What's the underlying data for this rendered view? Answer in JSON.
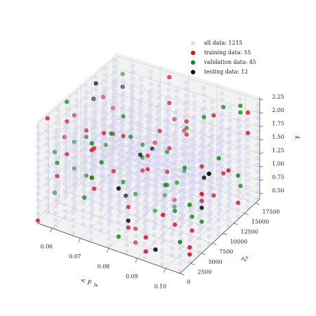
{
  "chart_data": {
    "type": "scatter3d",
    "xlabel": "< F >",
    "ylabel": "T₀",
    "zlabel": "γ",
    "xlim": [
      0.055,
      0.105
    ],
    "ylim": [
      0,
      18500
    ],
    "zlim": [
      0.4,
      2.3
    ],
    "xticks": [
      0.06,
      0.07,
      0.08,
      0.09,
      {
        "value": 0.1,
        "label": "0.10"
      }
    ],
    "yticks": [
      0,
      2500,
      5000,
      7500,
      10000,
      12500,
      15000,
      17500
    ],
    "zticks": [
      {
        "value": 0.5,
        "label": "0.50"
      },
      0.75,
      {
        "value": 1,
        "label": "1.00"
      },
      1.25,
      {
        "value": 1.5,
        "label": "1.50"
      },
      1.75,
      {
        "value": 2,
        "label": "2.00"
      },
      2.25
    ],
    "grid": true,
    "legend": "upper right",
    "series": [
      {
        "name": "all data: 1215",
        "color": "#c4c4f4",
        "grid": {
          "x": [
            0.055,
            0.06125,
            0.0675,
            0.07375,
            0.08,
            0.08625,
            0.0925,
            0.09875,
            0.105
          ],
          "y": [
            0,
            2250,
            4500,
            6750,
            9000,
            11250,
            13500,
            15750,
            18000
          ],
          "z": [
            0.45,
            0.575,
            0.7,
            0.825,
            0.95,
            1.075,
            1.2,
            1.325,
            1.45,
            1.575,
            1.7,
            1.825,
            1.95,
            2.075,
            2.2
          ]
        }
      },
      {
        "name": "training data: 55",
        "color": "#d8102a",
        "x": [
          0.055,
          0.061,
          0.068,
          0.074,
          0.08,
          0.086,
          0.093,
          0.099,
          0.105,
          0.068,
          0.093,
          0.061,
          0.086,
          0.074,
          0.099,
          0.055,
          0.08,
          0.105,
          0.105,
          0.099,
          0.093,
          0.086,
          0.08,
          0.074,
          0.068,
          0.061,
          0.055,
          0.105,
          0.08,
          0.055,
          0.099,
          0.074,
          0.086,
          0.061,
          0.093,
          0.068,
          0.055,
          0.061,
          0.068,
          0.074,
          0.08,
          0.086,
          0.093,
          0.099,
          0.105,
          0.068,
          0.093,
          0.061,
          0.086,
          0.074,
          0.099,
          0.055,
          0.08,
          0.105,
          0.08
        ],
        "y": [
          0,
          13500,
          4500,
          18000,
          9000,
          2250,
          15750,
          6750,
          11250,
          6750,
          0,
          11250,
          2250,
          15750,
          9000,
          4500,
          18000,
          13500,
          15750,
          9000,
          0,
          13500,
          4500,
          18000,
          11250,
          2250,
          6750,
          2250,
          18000,
          6750,
          9000,
          0,
          11250,
          13500,
          15750,
          4500,
          11250,
          4500,
          15750,
          0,
          13500,
          6750,
          18000,
          9000,
          2250,
          9000,
          6750,
          13500,
          11250,
          18000,
          0,
          2250,
          4500,
          15750,
          9000
        ],
        "z": [
          0.45,
          1.7,
          0.95,
          2.2,
          1.2,
          0.7,
          1.95,
          0.575,
          1.45,
          1.825,
          0.825,
          2.075,
          0.45,
          1.325,
          1.575,
          0.95,
          1.2,
          0.7,
          2.2,
          1.075,
          0.575,
          1.7,
          0.45,
          0.825,
          1.45,
          1.95,
          1.2,
          0.7,
          1.45,
          1.825,
          0.95,
          2.075,
          0.575,
          1.2,
          0.45,
          1.7,
          1.325,
          2.2,
          0.45,
          1.575,
          0.825,
          1.95,
          0.7,
          1.075,
          0.575,
          0.95,
          0.575,
          1.2,
          2.075,
          1.7,
          1.325,
          2.2,
          0.825,
          1.825,
          1.45
        ]
      },
      {
        "name": "validation data: 45",
        "color": "#138a13",
        "x": [
          0.068,
          0.093,
          0.061,
          0.086,
          0.074,
          0.099,
          0.055,
          0.08,
          0.105,
          0.055,
          0.061,
          0.068,
          0.074,
          0.08,
          0.086,
          0.093,
          0.099,
          0.105,
          0.105,
          0.08,
          0.055,
          0.099,
          0.074,
          0.086,
          0.061,
          0.093,
          0.068,
          0.105,
          0.099,
          0.093,
          0.086,
          0.08,
          0.074,
          0.068,
          0.061,
          0.055,
          0.055,
          0.061,
          0.068,
          0.074,
          0.08,
          0.086,
          0.093,
          0.099,
          0.105
        ],
        "y": [
          15750,
          9000,
          0,
          13500,
          4500,
          18000,
          11250,
          2250,
          6750,
          11250,
          4500,
          15750,
          0,
          13500,
          6750,
          18000,
          9000,
          2250,
          0,
          13500,
          4500,
          18000,
          9000,
          2250,
          15750,
          6750,
          11250,
          9000,
          6750,
          13500,
          11250,
          18000,
          0,
          2250,
          4500,
          15750,
          6750,
          0,
          11250,
          2250,
          15750,
          9000,
          4500,
          18000,
          13500
        ],
        "z": [
          0.7,
          1.45,
          1.825,
          0.95,
          2.075,
          0.575,
          1.2,
          0.45,
          1.7,
          0.45,
          1.7,
          0.95,
          2.2,
          1.2,
          0.7,
          1.95,
          0.575,
          1.45,
          0.95,
          0.575,
          1.2,
          2.075,
          1.7,
          1.325,
          2.2,
          0.825,
          1.825,
          1.825,
          0.825,
          2.075,
          0.45,
          1.325,
          1.575,
          0.95,
          1.2,
          0.7,
          2.2,
          1.075,
          0.575,
          1.7,
          0.45,
          0.825,
          1.45,
          1.95,
          1.2
        ]
      },
      {
        "name": "testing data: 12",
        "color": "#000000",
        "x": [
          0.08,
          0.061,
          0.093,
          0.074,
          0.099,
          0.055,
          0.086,
          0.068,
          0.105,
          0.08,
          0.093,
          0.061
        ],
        "y": [
          4500,
          15750,
          2250,
          11250,
          9000,
          13500,
          0,
          18000,
          6750,
          2250,
          13500,
          9000
        ],
        "z": [
          0.575,
          1.95,
          0.45,
          1.2,
          0.825,
          2.075,
          1.45,
          0.7,
          1.7,
          1.325,
          0.95,
          2.2
        ]
      }
    ]
  }
}
